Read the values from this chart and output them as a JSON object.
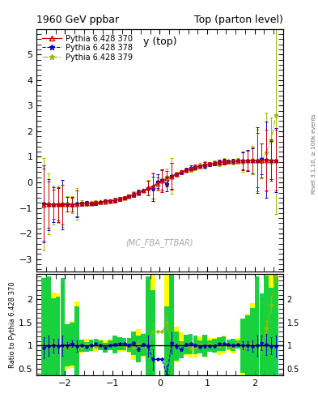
{
  "title_left": "1960 GeV ppbar",
  "title_right": "Top (parton level)",
  "plot_title": "y (top)",
  "ylabel_ratio": "Ratio to Pythia 6.428 370",
  "right_label": "Rivet 3.1.10, ≥ 100k events",
  "watermark": "(MC_FBA_TTBAR)",
  "legend": [
    "Pythia 6.428 370",
    "Pythia 6.428 378",
    "Pythia 6.428 379"
  ],
  "main_ylim": [
    -3.5,
    6.0
  ],
  "main_yticks": [
    -3,
    -2,
    -1,
    0,
    1,
    2,
    3,
    4,
    5
  ],
  "ratio_ylim": [
    0.35,
    2.55
  ],
  "ratio_yticks": [
    0.5,
    1.0,
    1.5,
    2.0
  ],
  "ratio_ytick_labels": [
    "0.5",
    "1",
    "1.5",
    "2"
  ],
  "xlim": [
    -2.6,
    2.6
  ],
  "x_ticks": [
    -2,
    -1,
    0,
    1,
    2
  ],
  "x_tick_labels": [
    "−2",
    "−1",
    "0",
    "1",
    "2"
  ],
  "colors": [
    "#cc0000",
    "#0000cc",
    "#99bb00"
  ],
  "band_yellow": "#ffff00",
  "band_green": "#00cc44",
  "bg_color": "#ffffff"
}
